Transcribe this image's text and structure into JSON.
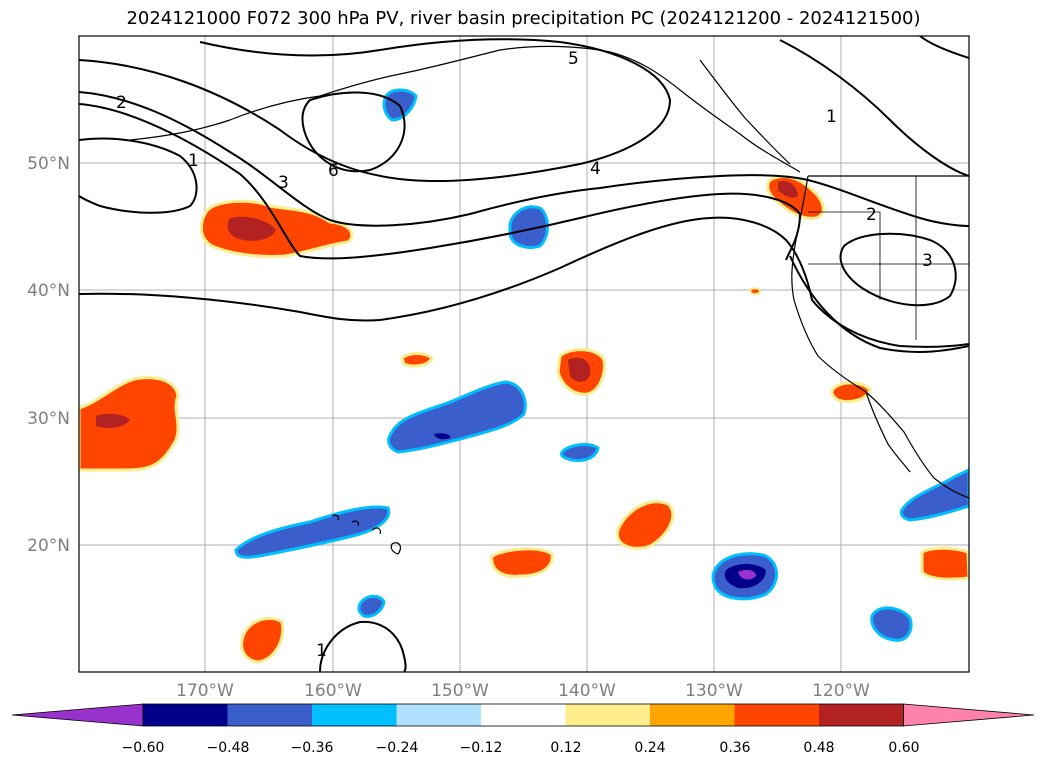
{
  "title": "2024121000 F072 300 hPa PV, river basin precipitation PC (2024121200 - 2024121500)",
  "map": {
    "lon_labels": [
      "170°W",
      "160°W",
      "150°W",
      "140°W",
      "130°W",
      "120°W"
    ],
    "lat_labels": [
      "50°N",
      "40°N",
      "30°N",
      "20°N"
    ],
    "pv_contour_labels": [
      "1",
      "2",
      "3",
      "4",
      "5",
      "6",
      "1",
      "2",
      "3",
      "1"
    ]
  },
  "colorbar": {
    "tick_labels": [
      "−0.60",
      "−0.48",
      "−0.36",
      "−0.24",
      "−0.12",
      "0.12",
      "0.24",
      "0.36",
      "0.48",
      "0.60"
    ],
    "colors": [
      "#9932cc",
      "#00008b",
      "#3a5fcd",
      "#00bfff",
      "#b0e2ff",
      "#ffffff",
      "#ffec8b",
      "#ffa500",
      "#ff4500",
      "#b22222",
      "#ff82ab"
    ]
  },
  "colors": {
    "neg_strong": "#00008b",
    "neg_mid": "#3a5fcd",
    "neg_light": "#00bfff",
    "neg_min": "#9932cc",
    "pos_mid": "#ff4500",
    "pos_strong": "#b22222",
    "pos_light": "#ffec8b"
  }
}
